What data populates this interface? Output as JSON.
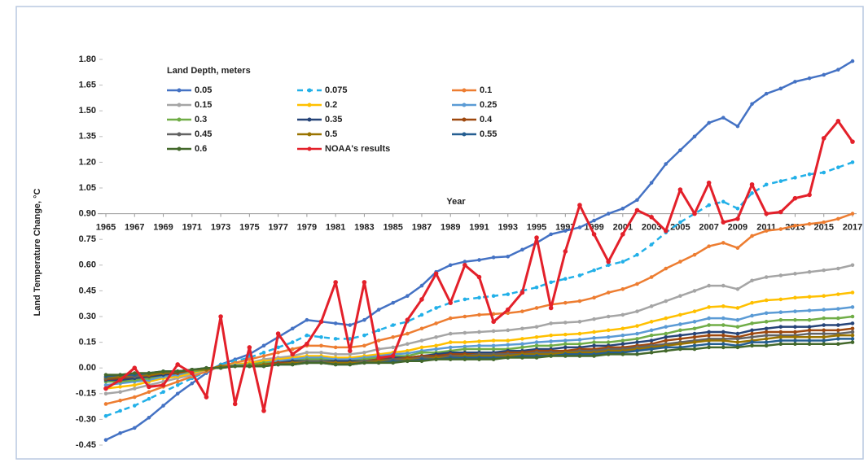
{
  "chart_data": {
    "type": "line",
    "legend_title": "Land Depth, meters",
    "y_label": "Land Temperature Change, °C",
    "x_label": "Year",
    "x": [
      1965,
      1966,
      1967,
      1968,
      1969,
      1970,
      1971,
      1972,
      1973,
      1974,
      1975,
      1976,
      1977,
      1978,
      1979,
      1980,
      1981,
      1982,
      1983,
      1984,
      1985,
      1986,
      1987,
      1988,
      1989,
      1990,
      1991,
      1992,
      1993,
      1994,
      1995,
      1996,
      1997,
      1998,
      1999,
      2000,
      2001,
      2002,
      2003,
      2004,
      2005,
      2006,
      2007,
      2008,
      2009,
      2010,
      2011,
      2012,
      2013,
      2014,
      2015,
      2016,
      2017
    ],
    "xlim": [
      1965,
      2017
    ],
    "xticks": [
      1965,
      1967,
      1969,
      1971,
      1973,
      1975,
      1977,
      1979,
      1981,
      1983,
      1985,
      1987,
      1989,
      1991,
      1993,
      1995,
      1997,
      1999,
      2001,
      2003,
      2005,
      2007,
      2009,
      2011,
      2013,
      2015,
      2017
    ],
    "x_axis_crosses": 0.9,
    "ylim": [
      -0.45,
      1.8
    ],
    "yticks": [
      {
        "value": 1.8,
        "label": "1.80"
      },
      {
        "value": 1.65,
        "label": "1.65"
      },
      {
        "value": 1.5,
        "label": "1.50"
      },
      {
        "value": 1.35,
        "label": "1.35"
      },
      {
        "value": 1.2,
        "label": "1.20"
      },
      {
        "value": 1.05,
        "label": "1.05"
      },
      {
        "value": 0.9,
        "label": "0.90"
      },
      0.75,
      {
        "value": 0.6,
        "label": "0.60"
      },
      0.45,
      {
        "value": 0.3,
        "label": "0.30"
      },
      0.15,
      {
        "value": 0,
        "label": "0.00"
      },
      -0.15,
      {
        "value": -0.3,
        "label": "-0.30"
      },
      -0.45
    ],
    "grid": false,
    "series": [
      {
        "name": "0.05",
        "color": "#4472c4",
        "values": [
          -0.42,
          -0.38,
          -0.35,
          -0.29,
          -0.22,
          -0.15,
          -0.09,
          -0.03,
          0.02,
          0.05,
          0.08,
          0.13,
          0.18,
          0.23,
          0.28,
          0.27,
          0.26,
          0.25,
          0.28,
          0.34,
          0.38,
          0.42,
          0.48,
          0.56,
          0.6,
          0.62,
          0.63,
          0.645,
          0.65,
          0.69,
          0.73,
          0.78,
          0.8,
          0.82,
          0.86,
          0.9,
          0.93,
          0.98,
          1.08,
          1.19,
          1.27,
          1.35,
          1.43,
          1.46,
          1.41,
          1.54,
          1.6,
          1.63,
          1.67,
          1.69,
          1.71,
          1.74,
          1.79
        ]
      },
      {
        "name": "0.075",
        "color": "#22b0e8",
        "dashed": true,
        "values": [
          -0.28,
          -0.25,
          -0.22,
          -0.18,
          -0.14,
          -0.1,
          -0.06,
          -0.02,
          0.02,
          0.04,
          0.06,
          0.09,
          0.12,
          0.15,
          0.19,
          0.18,
          0.17,
          0.17,
          0.19,
          0.22,
          0.25,
          0.27,
          0.31,
          0.35,
          0.38,
          0.4,
          0.41,
          0.42,
          0.43,
          0.45,
          0.47,
          0.5,
          0.52,
          0.54,
          0.57,
          0.6,
          0.62,
          0.66,
          0.72,
          0.79,
          0.85,
          0.9,
          0.95,
          0.97,
          0.93,
          1.02,
          1.07,
          1.09,
          1.11,
          1.13,
          1.14,
          1.17,
          1.2
        ]
      },
      {
        "name": "0.1",
        "color": "#ed7d31",
        "values": [
          -0.21,
          -0.19,
          -0.17,
          -0.14,
          -0.11,
          -0.08,
          -0.05,
          -0.02,
          0.01,
          0.03,
          0.05,
          0.07,
          0.09,
          0.11,
          0.13,
          0.13,
          0.12,
          0.12,
          0.13,
          0.16,
          0.18,
          0.2,
          0.23,
          0.26,
          0.29,
          0.3,
          0.31,
          0.315,
          0.32,
          0.33,
          0.35,
          0.37,
          0.38,
          0.39,
          0.41,
          0.44,
          0.46,
          0.49,
          0.53,
          0.58,
          0.62,
          0.66,
          0.71,
          0.73,
          0.7,
          0.77,
          0.8,
          0.81,
          0.83,
          0.84,
          0.85,
          0.87,
          0.9
        ]
      },
      {
        "name": "0.15",
        "color": "#a5a5a5",
        "values": [
          -0.15,
          -0.14,
          -0.12,
          -0.1,
          -0.08,
          -0.06,
          -0.04,
          -0.01,
          0.01,
          0.02,
          0.03,
          0.05,
          0.06,
          0.07,
          0.09,
          0.09,
          0.08,
          0.08,
          0.09,
          0.11,
          0.12,
          0.14,
          0.16,
          0.18,
          0.2,
          0.205,
          0.21,
          0.215,
          0.22,
          0.23,
          0.24,
          0.26,
          0.265,
          0.27,
          0.285,
          0.3,
          0.31,
          0.33,
          0.36,
          0.39,
          0.42,
          0.45,
          0.48,
          0.48,
          0.46,
          0.51,
          0.53,
          0.54,
          0.55,
          0.56,
          0.57,
          0.58,
          0.6
        ]
      },
      {
        "name": "0.2",
        "color": "#ffc000",
        "values": [
          -0.12,
          -0.11,
          -0.1,
          -0.08,
          -0.06,
          -0.05,
          -0.03,
          -0.01,
          0.01,
          0.02,
          0.03,
          0.04,
          0.05,
          0.06,
          0.07,
          0.07,
          0.06,
          0.06,
          0.07,
          0.08,
          0.09,
          0.1,
          0.12,
          0.13,
          0.15,
          0.15,
          0.155,
          0.16,
          0.16,
          0.17,
          0.18,
          0.19,
          0.195,
          0.2,
          0.21,
          0.22,
          0.23,
          0.245,
          0.27,
          0.29,
          0.31,
          0.33,
          0.355,
          0.36,
          0.35,
          0.38,
          0.395,
          0.4,
          0.41,
          0.415,
          0.42,
          0.43,
          0.44
        ]
      },
      {
        "name": "0.25",
        "color": "#5b9bd5",
        "values": [
          -0.1,
          -0.09,
          -0.08,
          -0.07,
          -0.05,
          -0.04,
          -0.02,
          -0.01,
          0.01,
          0.015,
          0.02,
          0.03,
          0.04,
          0.05,
          0.06,
          0.06,
          0.05,
          0.05,
          0.06,
          0.07,
          0.08,
          0.085,
          0.1,
          0.11,
          0.12,
          0.125,
          0.13,
          0.13,
          0.135,
          0.14,
          0.15,
          0.155,
          0.16,
          0.165,
          0.175,
          0.18,
          0.19,
          0.2,
          0.22,
          0.24,
          0.255,
          0.27,
          0.29,
          0.29,
          0.28,
          0.305,
          0.32,
          0.325,
          0.33,
          0.335,
          0.34,
          0.345,
          0.355
        ]
      },
      {
        "name": "0.3",
        "color": "#70ad47",
        "values": [
          -0.08,
          -0.08,
          -0.07,
          -0.06,
          -0.04,
          -0.03,
          -0.02,
          -0.01,
          0.01,
          0.01,
          0.02,
          0.03,
          0.03,
          0.04,
          0.05,
          0.05,
          0.04,
          0.04,
          0.05,
          0.06,
          0.07,
          0.07,
          0.09,
          0.09,
          0.1,
          0.11,
          0.11,
          0.11,
          0.11,
          0.12,
          0.13,
          0.13,
          0.14,
          0.14,
          0.15,
          0.15,
          0.16,
          0.17,
          0.19,
          0.2,
          0.22,
          0.23,
          0.25,
          0.25,
          0.24,
          0.26,
          0.27,
          0.28,
          0.28,
          0.28,
          0.29,
          0.29,
          0.3
        ]
      },
      {
        "name": "0.35",
        "color": "#264478",
        "values": [
          -0.07,
          -0.07,
          -0.06,
          -0.05,
          -0.04,
          -0.03,
          -0.01,
          -0.01,
          0.01,
          0.01,
          0.01,
          0.02,
          0.03,
          0.04,
          0.04,
          0.04,
          0.04,
          0.04,
          0.04,
          0.05,
          0.06,
          0.06,
          0.07,
          0.08,
          0.09,
          0.09,
          0.09,
          0.09,
          0.1,
          0.1,
          0.11,
          0.11,
          0.12,
          0.12,
          0.13,
          0.13,
          0.14,
          0.15,
          0.16,
          0.18,
          0.19,
          0.2,
          0.21,
          0.21,
          0.2,
          0.22,
          0.23,
          0.24,
          0.24,
          0.24,
          0.25,
          0.25,
          0.26
        ]
      },
      {
        "name": "0.4",
        "color": "#9e480e",
        "values": [
          -0.065,
          -0.06,
          -0.05,
          -0.045,
          -0.03,
          -0.03,
          -0.01,
          -0.01,
          0.01,
          0.01,
          0.01,
          0.02,
          0.03,
          0.03,
          0.04,
          0.04,
          0.03,
          0.03,
          0.04,
          0.05,
          0.05,
          0.06,
          0.07,
          0.07,
          0.08,
          0.08,
          0.08,
          0.08,
          0.09,
          0.09,
          0.1,
          0.1,
          0.1,
          0.11,
          0.11,
          0.12,
          0.12,
          0.13,
          0.14,
          0.16,
          0.17,
          0.18,
          0.19,
          0.19,
          0.18,
          0.2,
          0.21,
          0.21,
          0.21,
          0.22,
          0.22,
          0.22,
          0.23
        ]
      },
      {
        "name": "0.45",
        "color": "#636363",
        "values": [
          -0.06,
          -0.05,
          -0.05,
          -0.04,
          -0.03,
          -0.02,
          -0.01,
          -0.01,
          0.01,
          0.01,
          0.01,
          0.02,
          0.02,
          0.03,
          0.04,
          0.04,
          0.03,
          0.03,
          0.04,
          0.04,
          0.05,
          0.05,
          0.06,
          0.06,
          0.07,
          0.07,
          0.08,
          0.08,
          0.08,
          0.08,
          0.09,
          0.09,
          0.09,
          0.1,
          0.1,
          0.11,
          0.11,
          0.12,
          0.13,
          0.14,
          0.15,
          0.16,
          0.17,
          0.17,
          0.17,
          0.18,
          0.19,
          0.19,
          0.19,
          0.2,
          0.2,
          0.2,
          0.21
        ]
      },
      {
        "name": "0.5",
        "color": "#997300",
        "values": [
          -0.055,
          -0.05,
          -0.04,
          -0.04,
          -0.03,
          -0.02,
          -0.01,
          -0.01,
          0.01,
          0.01,
          0.01,
          0.02,
          0.02,
          0.03,
          0.03,
          0.03,
          0.03,
          0.03,
          0.03,
          0.04,
          0.04,
          0.05,
          0.05,
          0.06,
          0.06,
          0.07,
          0.07,
          0.07,
          0.07,
          0.08,
          0.08,
          0.08,
          0.09,
          0.09,
          0.09,
          0.1,
          0.1,
          0.11,
          0.12,
          0.13,
          0.14,
          0.15,
          0.16,
          0.16,
          0.15,
          0.16,
          0.17,
          0.18,
          0.18,
          0.18,
          0.18,
          0.19,
          0.19
        ]
      },
      {
        "name": "0.55",
        "color": "#255e91",
        "values": [
          -0.05,
          -0.04,
          -0.04,
          -0.03,
          -0.02,
          -0.02,
          -0.01,
          0.0,
          0.0,
          0.01,
          0.01,
          0.01,
          0.02,
          0.02,
          0.03,
          0.03,
          0.02,
          0.02,
          0.03,
          0.03,
          0.04,
          0.04,
          0.05,
          0.05,
          0.06,
          0.06,
          0.06,
          0.06,
          0.06,
          0.07,
          0.07,
          0.07,
          0.08,
          0.08,
          0.08,
          0.09,
          0.09,
          0.1,
          0.11,
          0.12,
          0.12,
          0.13,
          0.14,
          0.14,
          0.13,
          0.15,
          0.15,
          0.16,
          0.16,
          0.16,
          0.16,
          0.17,
          0.17
        ]
      },
      {
        "name": "0.6",
        "color": "#43682b",
        "values": [
          -0.04,
          -0.04,
          -0.03,
          -0.03,
          -0.02,
          -0.02,
          -0.01,
          0.0,
          0.0,
          0.01,
          0.01,
          0.01,
          0.02,
          0.02,
          0.03,
          0.03,
          0.02,
          0.02,
          0.03,
          0.03,
          0.03,
          0.04,
          0.04,
          0.05,
          0.05,
          0.05,
          0.05,
          0.05,
          0.06,
          0.06,
          0.06,
          0.07,
          0.07,
          0.07,
          0.07,
          0.08,
          0.08,
          0.08,
          0.09,
          0.1,
          0.11,
          0.11,
          0.12,
          0.12,
          0.12,
          0.13,
          0.13,
          0.14,
          0.14,
          0.14,
          0.14,
          0.14,
          0.15
        ]
      },
      {
        "name": "NOAA's results",
        "color": "#e3202a",
        "values": [
          -0.12,
          -0.07,
          0.0,
          -0.11,
          -0.1,
          0.02,
          -0.03,
          -0.17,
          0.3,
          -0.21,
          0.12,
          -0.25,
          0.2,
          0.08,
          0.14,
          0.27,
          0.5,
          0.1,
          0.5,
          0.06,
          0.07,
          0.28,
          0.4,
          0.55,
          0.38,
          0.6,
          0.53,
          0.27,
          0.34,
          0.44,
          0.76,
          0.35,
          0.68,
          0.95,
          0.78,
          0.62,
          0.78,
          0.92,
          0.88,
          0.8,
          1.04,
          0.9,
          1.08,
          0.85,
          0.87,
          1.07,
          0.9,
          0.91,
          0.99,
          1.01,
          1.34,
          1.44,
          1.32
        ]
      }
    ]
  }
}
